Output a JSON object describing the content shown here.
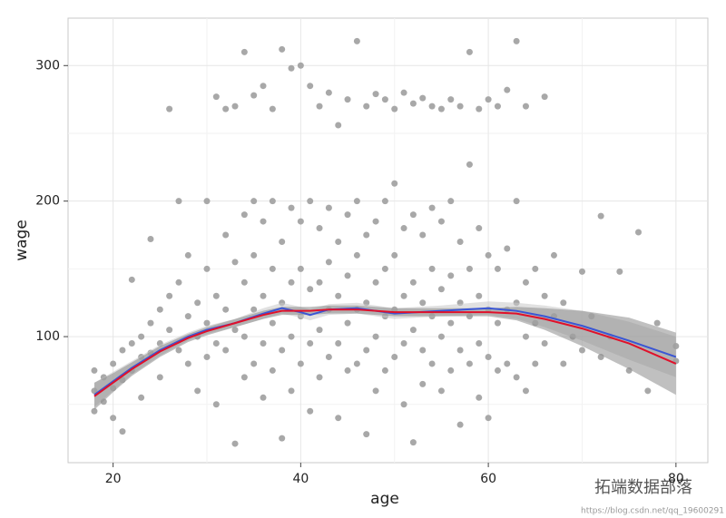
{
  "chart_data": {
    "type": "scatter",
    "xlabel": "age",
    "ylabel": "wage",
    "xlim": [
      15.2,
      83.4
    ],
    "ylim": [
      7,
      335
    ],
    "xticks": [
      20,
      40,
      60,
      80
    ],
    "yticks": [
      100,
      200,
      300
    ],
    "xminor": [
      30,
      50,
      70
    ],
    "yminor": [
      50,
      150,
      250
    ],
    "grid": true,
    "points": {
      "color": "#a8a8a8",
      "x": [
        18,
        18,
        18,
        19,
        19,
        20,
        20,
        20,
        21,
        21,
        21,
        22,
        22,
        22,
        23,
        23,
        23,
        24,
        24,
        24,
        25,
        25,
        25,
        26,
        26,
        26,
        27,
        27,
        27,
        28,
        28,
        28,
        29,
        29,
        29,
        30,
        30,
        30,
        30,
        31,
        31,
        31,
        32,
        32,
        32,
        33,
        33,
        33,
        34,
        34,
        34,
        34,
        35,
        35,
        35,
        35,
        36,
        36,
        36,
        36,
        37,
        37,
        37,
        37,
        38,
        38,
        38,
        38,
        39,
        39,
        39,
        39,
        40,
        40,
        40,
        40,
        41,
        41,
        41,
        41,
        42,
        42,
        42,
        42,
        43,
        43,
        43,
        43,
        44,
        44,
        44,
        44,
        45,
        45,
        45,
        45,
        46,
        46,
        46,
        46,
        47,
        47,
        47,
        47,
        48,
        48,
        48,
        48,
        49,
        49,
        49,
        49,
        50,
        50,
        50,
        50,
        51,
        51,
        51,
        51,
        52,
        52,
        52,
        52,
        53,
        53,
        53,
        53,
        54,
        54,
        54,
        54,
        55,
        55,
        55,
        55,
        56,
        56,
        56,
        56,
        57,
        57,
        57,
        57,
        58,
        58,
        58,
        58,
        59,
        59,
        59,
        59,
        60,
        60,
        60,
        60,
        61,
        61,
        61,
        62,
        62,
        62,
        63,
        63,
        63,
        64,
        64,
        64,
        65,
        65,
        65,
        66,
        66,
        67,
        67,
        68,
        68,
        69,
        70,
        70,
        71,
        72,
        72,
        73,
        74,
        75,
        76,
        77,
        78,
        80,
        80,
        33,
        34,
        35,
        36,
        37,
        38,
        39,
        40,
        41,
        42,
        43,
        44,
        45,
        46,
        47,
        48,
        49,
        50,
        51,
        52,
        53,
        54,
        55,
        56,
        57,
        58,
        59,
        60,
        61,
        62,
        63,
        64,
        66,
        31,
        32
      ],
      "y": [
        60,
        75,
        45,
        70,
        52,
        80,
        62,
        40,
        90,
        68,
        30,
        95,
        75,
        142,
        100,
        85,
        55,
        110,
        88,
        172,
        120,
        95,
        70,
        130,
        105,
        268,
        140,
        90,
        200,
        115,
        80,
        160,
        125,
        100,
        60,
        200,
        150,
        110,
        85,
        130,
        95,
        50,
        175,
        120,
        90,
        155,
        105,
        21,
        190,
        140,
        100,
        70,
        200,
        160,
        120,
        80,
        185,
        130,
        95,
        55,
        200,
        150,
        110,
        75,
        170,
        125,
        90,
        25,
        195,
        140,
        100,
        60,
        185,
        150,
        115,
        80,
        200,
        135,
        95,
        45,
        180,
        140,
        105,
        70,
        195,
        155,
        120,
        85,
        170,
        130,
        95,
        40,
        190,
        145,
        110,
        75,
        200,
        160,
        120,
        80,
        175,
        125,
        90,
        28,
        185,
        140,
        100,
        60,
        200,
        150,
        115,
        75,
        213,
        160,
        120,
        85,
        180,
        130,
        95,
        50,
        190,
        140,
        105,
        22,
        175,
        125,
        90,
        65,
        195,
        150,
        115,
        80,
        185,
        135,
        100,
        60,
        200,
        145,
        110,
        75,
        170,
        125,
        90,
        35,
        227,
        150,
        115,
        80,
        180,
        130,
        95,
        55,
        160,
        120,
        85,
        40,
        150,
        110,
        75,
        165,
        120,
        80,
        200,
        125,
        70,
        140,
        100,
        60,
        150,
        110,
        80,
        130,
        95,
        160,
        115,
        125,
        80,
        100,
        148,
        90,
        115,
        189,
        85,
        100,
        148,
        75,
        177,
        60,
        110,
        93,
        82,
        270,
        310,
        278,
        285,
        268,
        312,
        298,
        300,
        285,
        270,
        280,
        256,
        275,
        318,
        270,
        279,
        275,
        268,
        280,
        272,
        276,
        270,
        268,
        275,
        270,
        310,
        268,
        275,
        270,
        282,
        318,
        270,
        277,
        277,
        268
      ]
    },
    "bands": [
      {
        "color": "#c8c8c8",
        "x": [
          18,
          20,
          22,
          25,
          28,
          30,
          33,
          36,
          38,
          40,
          41,
          43,
          46,
          50,
          55,
          60,
          63,
          66,
          70,
          75,
          80
        ],
        "lower": [
          48,
          60,
          72,
          86,
          97,
          102,
          107,
          113,
          117,
          114,
          112,
          116,
          117,
          113,
          115,
          116,
          113,
          107,
          97,
          83,
          70
        ],
        "upper": [
          66,
          74,
          82,
          94,
          103,
          108,
          113,
          121,
          125,
          122,
          120,
          124,
          125,
          121,
          123,
          126,
          125,
          123,
          119,
          111,
          100
        ]
      },
      {
        "color": "#8c8c8c",
        "x": [
          18,
          20,
          22,
          25,
          28,
          30,
          33,
          36,
          38,
          40,
          41,
          43,
          46,
          50,
          55,
          60,
          63,
          66,
          70,
          75,
          80
        ],
        "lower": [
          46,
          59,
          71,
          85,
          96,
          101,
          107,
          113,
          116,
          116,
          116,
          117,
          117,
          115,
          115,
          115,
          112,
          105,
          93,
          76,
          57
        ],
        "upper": [
          66,
          73,
          81,
          93,
          102,
          107,
          113,
          119,
          122,
          122,
          122,
          123,
          123,
          121,
          121,
          121,
          122,
          121,
          119,
          114,
          103
        ]
      }
    ],
    "lines": [
      {
        "color": "#3a56d4",
        "x": [
          18,
          20,
          22,
          25,
          28,
          30,
          33,
          36,
          38,
          40,
          41,
          43,
          46,
          50,
          55,
          60,
          63,
          66,
          70,
          75,
          80
        ],
        "values": [
          57,
          67,
          77,
          90,
          100,
          105,
          110,
          117,
          121,
          118,
          116,
          120,
          121,
          117,
          119,
          121,
          119,
          115,
          108,
          97,
          85
        ]
      },
      {
        "color": "#e0102a",
        "x": [
          18,
          20,
          22,
          25,
          28,
          30,
          33,
          36,
          38,
          40,
          41,
          43,
          46,
          50,
          55,
          60,
          63,
          66,
          70,
          75,
          80
        ],
        "values": [
          56,
          66,
          76,
          89,
          99,
          104,
          110,
          116,
          119,
          119,
          119,
          120,
          120,
          118,
          118,
          118,
          117,
          113,
          106,
          95,
          80
        ]
      }
    ]
  },
  "watermark": {
    "text": "拓端数据部落",
    "url": "https://blog.csdn.net/qq_19600291"
  }
}
